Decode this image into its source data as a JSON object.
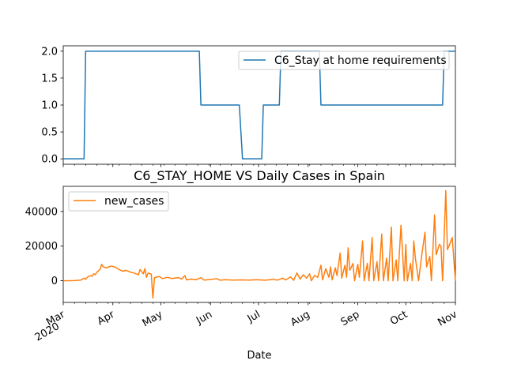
{
  "chart_data": [
    {
      "type": "line",
      "title": "",
      "xlabel": "",
      "ylabel": "",
      "ylim": [
        -0.1,
        2.1
      ],
      "xlim": [
        "2020-03-01",
        "2020-11-01"
      ],
      "yticks": [
        "0.0",
        "0.5",
        "1.0",
        "1.5",
        "2.0"
      ],
      "grid": false,
      "legend_position": "upper right",
      "series": [
        {
          "name": "C6_Stay at home requirements",
          "color": "#1f77b4",
          "points": [
            [
              "2020-03-01",
              0
            ],
            [
              "2020-03-14",
              0
            ],
            [
              "2020-03-15",
              2
            ],
            [
              "2020-05-25",
              2
            ],
            [
              "2020-05-26",
              1
            ],
            [
              "2020-06-19",
              1
            ],
            [
              "2020-06-21",
              0
            ],
            [
              "2020-07-03",
              0
            ],
            [
              "2020-07-04",
              1
            ],
            [
              "2020-07-14",
              1
            ],
            [
              "2020-07-15",
              2
            ],
            [
              "2020-08-08",
              2
            ],
            [
              "2020-08-09",
              1
            ],
            [
              "2020-10-24",
              1
            ],
            [
              "2020-10-25",
              2
            ],
            [
              "2020-11-01",
              2
            ]
          ]
        }
      ]
    },
    {
      "type": "line",
      "title": "C6_STAY_HOME VS Daily Cases in Spain",
      "xlabel": "Date",
      "ylabel": "",
      "ylim": [
        -12500,
        54500
      ],
      "xlim": [
        "2020-03-01",
        "2020-11-01"
      ],
      "yticks": [
        "0",
        "20000",
        "40000"
      ],
      "xticks": [
        "2020-03-01",
        "2020-04-01",
        "2020-05-01",
        "2020-06-01",
        "2020-07-01",
        "2020-08-01",
        "2020-09-01",
        "2020-10-01",
        "2020-11-01"
      ],
      "xticklabels": [
        "Mar\n2020",
        "Apr",
        "May",
        "Jun",
        "Jul",
        "Aug",
        "Sep",
        "Oct",
        "Nov"
      ],
      "grid": false,
      "legend_position": "upper left",
      "series": [
        {
          "name": "new_cases",
          "color": "#ff7f0e",
          "points": [
            [
              "2020-03-01",
              0
            ],
            [
              "2020-03-08",
              100
            ],
            [
              "2020-03-12",
              400
            ],
            [
              "2020-03-14",
              1500
            ],
            [
              "2020-03-15",
              800
            ],
            [
              "2020-03-16",
              2000
            ],
            [
              "2020-03-18",
              3000
            ],
            [
              "2020-03-19",
              2500
            ],
            [
              "2020-03-20",
              4000
            ],
            [
              "2020-03-21",
              3500
            ],
            [
              "2020-03-22",
              5000
            ],
            [
              "2020-03-24",
              6500
            ],
            [
              "2020-03-25",
              9500
            ],
            [
              "2020-03-26",
              8000
            ],
            [
              "2020-03-28",
              7500
            ],
            [
              "2020-03-31",
              8500
            ],
            [
              "2020-04-02",
              8000
            ],
            [
              "2020-04-05",
              6500
            ],
            [
              "2020-04-07",
              5500
            ],
            [
              "2020-04-09",
              6000
            ],
            [
              "2020-04-12",
              5000
            ],
            [
              "2020-04-14",
              4500
            ],
            [
              "2020-04-17",
              3500
            ],
            [
              "2020-04-18",
              6500
            ],
            [
              "2020-04-20",
              4000
            ],
            [
              "2020-04-21",
              7000
            ],
            [
              "2020-04-22",
              2000
            ],
            [
              "2020-04-23",
              4500
            ],
            [
              "2020-04-25",
              3800
            ],
            [
              "2020-04-26",
              -10000
            ],
            [
              "2020-04-27",
              1800
            ],
            [
              "2020-04-30",
              2500
            ],
            [
              "2020-05-02",
              1200
            ],
            [
              "2020-05-05",
              2000
            ],
            [
              "2020-05-08",
              1300
            ],
            [
              "2020-05-12",
              1800
            ],
            [
              "2020-05-14",
              1000
            ],
            [
              "2020-05-16",
              3000
            ],
            [
              "2020-05-17",
              500
            ],
            [
              "2020-05-20",
              1000
            ],
            [
              "2020-05-23",
              600
            ],
            [
              "2020-05-26",
              1800
            ],
            [
              "2020-05-28",
              400
            ],
            [
              "2020-06-01",
              800
            ],
            [
              "2020-06-05",
              1200
            ],
            [
              "2020-06-07",
              300
            ],
            [
              "2020-06-10",
              600
            ],
            [
              "2020-06-15",
              400
            ],
            [
              "2020-06-20",
              500
            ],
            [
              "2020-06-25",
              400
            ],
            [
              "2020-06-30",
              600
            ],
            [
              "2020-07-05",
              300
            ],
            [
              "2020-07-10",
              800
            ],
            [
              "2020-07-13",
              400
            ],
            [
              "2020-07-16",
              1500
            ],
            [
              "2020-07-18",
              500
            ],
            [
              "2020-07-21",
              2200
            ],
            [
              "2020-07-23",
              300
            ],
            [
              "2020-07-25",
              4500
            ],
            [
              "2020-07-27",
              1000
            ],
            [
              "2020-07-29",
              3500
            ],
            [
              "2020-07-31",
              1500
            ],
            [
              "2020-08-02",
              4000
            ],
            [
              "2020-08-03",
              0
            ],
            [
              "2020-08-05",
              3000
            ],
            [
              "2020-08-07",
              2000
            ],
            [
              "2020-08-09",
              9000
            ],
            [
              "2020-08-10",
              500
            ],
            [
              "2020-08-12",
              7000
            ],
            [
              "2020-08-14",
              2000
            ],
            [
              "2020-08-15",
              8000
            ],
            [
              "2020-08-16",
              500
            ],
            [
              "2020-08-18",
              7500
            ],
            [
              "2020-08-19",
              3000
            ],
            [
              "2020-08-21",
              16000
            ],
            [
              "2020-08-22",
              1500
            ],
            [
              "2020-08-24",
              9000
            ],
            [
              "2020-08-25",
              2000
            ],
            [
              "2020-08-26",
              19000
            ],
            [
              "2020-08-27",
              6000
            ],
            [
              "2020-08-29",
              10000
            ],
            [
              "2020-08-30",
              0
            ],
            [
              "2020-09-01",
              9500
            ],
            [
              "2020-09-02",
              2000
            ],
            [
              "2020-09-04",
              23000
            ],
            [
              "2020-09-05",
              0
            ],
            [
              "2020-09-07",
              10000
            ],
            [
              "2020-09-08",
              0
            ],
            [
              "2020-09-10",
              25000
            ],
            [
              "2020-09-11",
              0
            ],
            [
              "2020-09-13",
              11000
            ],
            [
              "2020-09-14",
              0
            ],
            [
              "2020-09-16",
              27000
            ],
            [
              "2020-09-17",
              0
            ],
            [
              "2020-09-19",
              13000
            ],
            [
              "2020-09-20",
              0
            ],
            [
              "2020-09-22",
              31000
            ],
            [
              "2020-09-23",
              0
            ],
            [
              "2020-09-25",
              12000
            ],
            [
              "2020-09-26",
              0
            ],
            [
              "2020-09-28",
              32000
            ],
            [
              "2020-09-30",
              0
            ],
            [
              "2020-10-01",
              21000
            ],
            [
              "2020-10-02",
              0
            ],
            [
              "2020-10-04",
              10000
            ],
            [
              "2020-10-05",
              0
            ],
            [
              "2020-10-06",
              23000
            ],
            [
              "2020-10-07",
              13000
            ],
            [
              "2020-10-09",
              0
            ],
            [
              "2020-10-11",
              15000
            ],
            [
              "2020-10-13",
              28000
            ],
            [
              "2020-10-14",
              8000
            ],
            [
              "2020-10-16",
              14000
            ],
            [
              "2020-10-17",
              0
            ],
            [
              "2020-10-19",
              38000
            ],
            [
              "2020-10-20",
              15000
            ],
            [
              "2020-10-22",
              21000
            ],
            [
              "2020-10-23",
              20000
            ],
            [
              "2020-10-24",
              0
            ],
            [
              "2020-10-26",
              52000
            ],
            [
              "2020-10-27",
              18000
            ],
            [
              "2020-10-28",
              20000
            ],
            [
              "2020-10-30",
              25000
            ],
            [
              "2020-11-01",
              0
            ]
          ]
        }
      ]
    }
  ]
}
